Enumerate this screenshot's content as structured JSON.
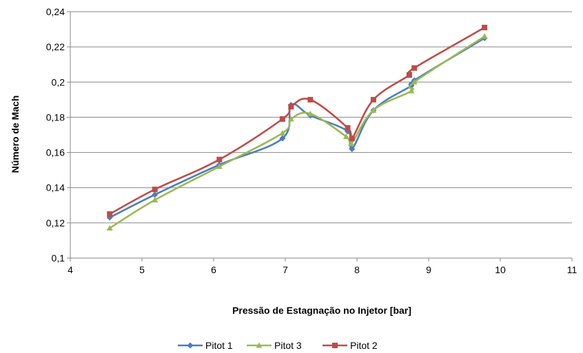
{
  "chart_data": {
    "type": "line",
    "title": "",
    "xlabel": "Pressão de Estagnação no Injetor [bar]",
    "ylabel": "Número de Mach",
    "xlim": [
      4,
      11
    ],
    "ylim": [
      0.1,
      0.24
    ],
    "x_ticks": [
      4,
      5,
      6,
      7,
      8,
      9,
      10,
      11
    ],
    "x_tick_labels": [
      "4",
      "5",
      "6",
      "7",
      "8",
      "9",
      "10",
      "11"
    ],
    "y_ticks": [
      0.1,
      0.12,
      0.14,
      0.16,
      0.18,
      0.2,
      0.22,
      0.24
    ],
    "y_tick_labels": [
      "0,1",
      "0,12",
      "0,14",
      "0,16",
      "0,18",
      "0,2",
      "0,22",
      "0,24"
    ],
    "grid": "horizontal",
    "legend_position": "bottom",
    "series": [
      {
        "name": "Pitot 1",
        "color": "#4a7ebb",
        "marker": "diamond",
        "points": [
          [
            4.55,
            0.123
          ],
          [
            5.18,
            0.136
          ],
          [
            6.08,
            0.153
          ],
          [
            6.96,
            0.168
          ],
          [
            7.08,
            0.187
          ],
          [
            7.35,
            0.181
          ],
          [
            7.87,
            0.172
          ],
          [
            7.93,
            0.162
          ],
          [
            8.23,
            0.184
          ],
          [
            8.76,
            0.198
          ],
          [
            8.8,
            0.201
          ],
          [
            9.78,
            0.225
          ]
        ]
      },
      {
        "name": "Pitot 3",
        "color": "#98b954",
        "marker": "triangle",
        "points": [
          [
            4.55,
            0.117
          ],
          [
            5.18,
            0.133
          ],
          [
            6.08,
            0.152
          ],
          [
            6.96,
            0.171
          ],
          [
            7.08,
            0.179
          ],
          [
            7.35,
            0.182
          ],
          [
            7.85,
            0.169
          ],
          [
            7.92,
            0.165
          ],
          [
            8.23,
            0.184
          ],
          [
            8.76,
            0.195
          ],
          [
            8.8,
            0.2
          ],
          [
            9.78,
            0.226
          ]
        ]
      },
      {
        "name": "Pitot 2",
        "color": "#be4b48",
        "marker": "square",
        "points": [
          [
            4.55,
            0.125
          ],
          [
            5.18,
            0.139
          ],
          [
            6.08,
            0.156
          ],
          [
            6.96,
            0.179
          ],
          [
            7.08,
            0.186
          ],
          [
            7.35,
            0.19
          ],
          [
            7.87,
            0.174
          ],
          [
            7.93,
            0.168
          ],
          [
            8.23,
            0.19
          ],
          [
            8.73,
            0.204
          ],
          [
            8.8,
            0.208
          ],
          [
            9.78,
            0.231
          ]
        ]
      }
    ]
  }
}
